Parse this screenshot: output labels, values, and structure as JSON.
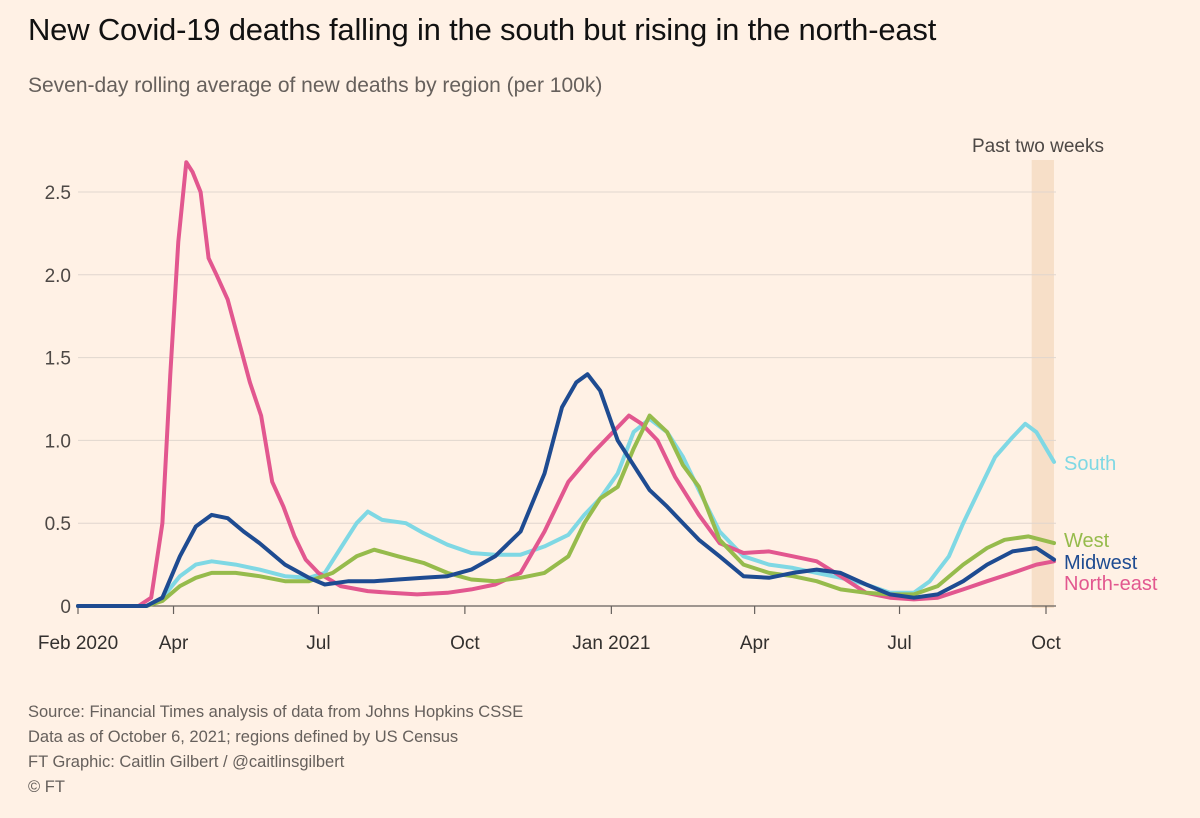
{
  "header": {
    "title": "New Covid-19 deaths falling in the south but rising in the north-east",
    "subtitle": "Seven-day rolling average of new deaths by region (per 100k)"
  },
  "annotation": {
    "past_two_weeks": "Past two weeks"
  },
  "footer": {
    "source": "Source: Financial Times analysis of data from Johns Hopkins CSSE",
    "note": "Data as of October 6, 2021; regions defined by US Census",
    "credit": "FT Graphic: Caitlin Gilbert / @caitlinsgilbert",
    "copyright": "© FT"
  },
  "colors": {
    "background": "#fff1e5",
    "south": "#7fd8e4",
    "west": "#96bb4c",
    "midwest": "#1e4b91",
    "northeast": "#e2578f",
    "highlight": "#f7dfc8",
    "grid": "#e0d6ce"
  },
  "chart_data": {
    "type": "line",
    "title": "New Covid-19 deaths falling in the south but rising in the north-east",
    "subtitle": "Seven-day rolling average of new deaths by region (per 100k)",
    "ylim": [
      0,
      2.7
    ],
    "xlim": [
      "2020-02-01",
      "2021-10-06"
    ],
    "y_ticks": [
      {
        "value": 0,
        "label": "0"
      },
      {
        "value": 0.5,
        "label": "0.5"
      },
      {
        "value": 1.0,
        "label": "1.0"
      },
      {
        "value": 1.5,
        "label": "1.5"
      },
      {
        "value": 2.0,
        "label": "2.0"
      },
      {
        "value": 2.5,
        "label": "2.5"
      }
    ],
    "x_ticks": [
      {
        "date": "2020-02-01",
        "label": "Feb 2020"
      },
      {
        "date": "2020-04-01",
        "label": "Apr"
      },
      {
        "date": "2020-07-01",
        "label": "Jul"
      },
      {
        "date": "2020-10-01",
        "label": "Oct"
      },
      {
        "date": "2021-01-01",
        "label": "Jan 2021"
      },
      {
        "date": "2021-04-01",
        "label": "Apr"
      },
      {
        "date": "2021-07-01",
        "label": "Jul"
      },
      {
        "date": "2021-10-01",
        "label": "Oct"
      }
    ],
    "highlight_range": [
      "2021-09-22",
      "2021-10-06"
    ],
    "grid": true,
    "legend": "direct labels at right end of lines",
    "series": [
      {
        "name": "North-east",
        "key": "northeast",
        "points": [
          [
            "2020-02-01",
            0
          ],
          [
            "2020-03-10",
            0
          ],
          [
            "2020-03-18",
            0.05
          ],
          [
            "2020-03-25",
            0.5
          ],
          [
            "2020-03-30",
            1.4
          ],
          [
            "2020-04-04",
            2.2
          ],
          [
            "2020-04-09",
            2.68
          ],
          [
            "2020-04-13",
            2.62
          ],
          [
            "2020-04-18",
            2.5
          ],
          [
            "2020-04-23",
            2.1
          ],
          [
            "2020-04-28",
            2.0
          ],
          [
            "2020-05-05",
            1.85
          ],
          [
            "2020-05-12",
            1.6
          ],
          [
            "2020-05-19",
            1.35
          ],
          [
            "2020-05-26",
            1.15
          ],
          [
            "2020-06-02",
            0.75
          ],
          [
            "2020-06-09",
            0.6
          ],
          [
            "2020-06-16",
            0.42
          ],
          [
            "2020-06-23",
            0.28
          ],
          [
            "2020-07-01",
            0.2
          ],
          [
            "2020-07-15",
            0.12
          ],
          [
            "2020-08-01",
            0.09
          ],
          [
            "2020-08-15",
            0.08
          ],
          [
            "2020-09-01",
            0.07
          ],
          [
            "2020-09-20",
            0.08
          ],
          [
            "2020-10-05",
            0.1
          ],
          [
            "2020-10-20",
            0.13
          ],
          [
            "2020-11-05",
            0.2
          ],
          [
            "2020-11-20",
            0.45
          ],
          [
            "2020-12-05",
            0.75
          ],
          [
            "2020-12-20",
            0.92
          ],
          [
            "2021-01-05",
            1.08
          ],
          [
            "2021-01-12",
            1.15
          ],
          [
            "2021-01-20",
            1.1
          ],
          [
            "2021-01-30",
            1.0
          ],
          [
            "2021-02-10",
            0.78
          ],
          [
            "2021-02-25",
            0.55
          ],
          [
            "2021-03-10",
            0.38
          ],
          [
            "2021-03-25",
            0.32
          ],
          [
            "2021-04-10",
            0.33
          ],
          [
            "2021-04-25",
            0.3
          ],
          [
            "2021-05-10",
            0.27
          ],
          [
            "2021-05-25",
            0.18
          ],
          [
            "2021-06-10",
            0.08
          ],
          [
            "2021-06-25",
            0.05
          ],
          [
            "2021-07-10",
            0.04
          ],
          [
            "2021-07-25",
            0.05
          ],
          [
            "2021-08-10",
            0.1
          ],
          [
            "2021-08-25",
            0.15
          ],
          [
            "2021-09-10",
            0.2
          ],
          [
            "2021-09-25",
            0.25
          ],
          [
            "2021-10-06",
            0.27
          ]
        ]
      },
      {
        "name": "South",
        "key": "south",
        "points": [
          [
            "2020-02-01",
            0
          ],
          [
            "2020-03-15",
            0
          ],
          [
            "2020-03-25",
            0.05
          ],
          [
            "2020-04-05",
            0.18
          ],
          [
            "2020-04-15",
            0.25
          ],
          [
            "2020-04-25",
            0.27
          ],
          [
            "2020-05-10",
            0.25
          ],
          [
            "2020-05-25",
            0.22
          ],
          [
            "2020-06-10",
            0.18
          ],
          [
            "2020-06-25",
            0.17
          ],
          [
            "2020-07-05",
            0.2
          ],
          [
            "2020-07-15",
            0.35
          ],
          [
            "2020-07-25",
            0.5
          ],
          [
            "2020-08-01",
            0.57
          ],
          [
            "2020-08-10",
            0.52
          ],
          [
            "2020-08-25",
            0.5
          ],
          [
            "2020-09-05",
            0.44
          ],
          [
            "2020-09-20",
            0.37
          ],
          [
            "2020-10-05",
            0.32
          ],
          [
            "2020-10-20",
            0.31
          ],
          [
            "2020-11-05",
            0.31
          ],
          [
            "2020-11-20",
            0.36
          ],
          [
            "2020-12-05",
            0.43
          ],
          [
            "2020-12-15",
            0.55
          ],
          [
            "2020-12-25",
            0.65
          ],
          [
            "2021-01-05",
            0.8
          ],
          [
            "2021-01-15",
            1.05
          ],
          [
            "2021-01-25",
            1.13
          ],
          [
            "2021-02-05",
            1.05
          ],
          [
            "2021-02-15",
            0.9
          ],
          [
            "2021-02-25",
            0.7
          ],
          [
            "2021-03-10",
            0.45
          ],
          [
            "2021-03-25",
            0.3
          ],
          [
            "2021-04-10",
            0.25
          ],
          [
            "2021-04-25",
            0.23
          ],
          [
            "2021-05-10",
            0.2
          ],
          [
            "2021-05-25",
            0.17
          ],
          [
            "2021-06-10",
            0.13
          ],
          [
            "2021-06-25",
            0.08
          ],
          [
            "2021-07-10",
            0.08
          ],
          [
            "2021-07-20",
            0.15
          ],
          [
            "2021-08-01",
            0.3
          ],
          [
            "2021-08-10",
            0.5
          ],
          [
            "2021-08-20",
            0.7
          ],
          [
            "2021-08-30",
            0.9
          ],
          [
            "2021-09-10",
            1.02
          ],
          [
            "2021-09-18",
            1.1
          ],
          [
            "2021-09-25",
            1.05
          ],
          [
            "2021-10-06",
            0.87
          ]
        ]
      },
      {
        "name": "West",
        "key": "west",
        "points": [
          [
            "2020-02-01",
            0
          ],
          [
            "2020-03-15",
            0
          ],
          [
            "2020-03-25",
            0.03
          ],
          [
            "2020-04-05",
            0.12
          ],
          [
            "2020-04-15",
            0.17
          ],
          [
            "2020-04-25",
            0.2
          ],
          [
            "2020-05-10",
            0.2
          ],
          [
            "2020-05-25",
            0.18
          ],
          [
            "2020-06-10",
            0.15
          ],
          [
            "2020-06-25",
            0.15
          ],
          [
            "2020-07-10",
            0.2
          ],
          [
            "2020-07-25",
            0.3
          ],
          [
            "2020-08-05",
            0.34
          ],
          [
            "2020-08-20",
            0.3
          ],
          [
            "2020-09-05",
            0.26
          ],
          [
            "2020-09-20",
            0.2
          ],
          [
            "2020-10-05",
            0.16
          ],
          [
            "2020-10-20",
            0.15
          ],
          [
            "2020-11-05",
            0.17
          ],
          [
            "2020-11-20",
            0.2
          ],
          [
            "2020-12-05",
            0.3
          ],
          [
            "2020-12-15",
            0.5
          ],
          [
            "2020-12-25",
            0.65
          ],
          [
            "2021-01-05",
            0.72
          ],
          [
            "2021-01-15",
            0.95
          ],
          [
            "2021-01-25",
            1.15
          ],
          [
            "2021-02-05",
            1.05
          ],
          [
            "2021-02-15",
            0.85
          ],
          [
            "2021-02-25",
            0.72
          ],
          [
            "2021-03-10",
            0.4
          ],
          [
            "2021-03-25",
            0.25
          ],
          [
            "2021-04-10",
            0.2
          ],
          [
            "2021-04-25",
            0.18
          ],
          [
            "2021-05-10",
            0.15
          ],
          [
            "2021-05-25",
            0.1
          ],
          [
            "2021-06-10",
            0.08
          ],
          [
            "2021-06-25",
            0.07
          ],
          [
            "2021-07-10",
            0.07
          ],
          [
            "2021-07-25",
            0.12
          ],
          [
            "2021-08-10",
            0.25
          ],
          [
            "2021-08-25",
            0.35
          ],
          [
            "2021-09-05",
            0.4
          ],
          [
            "2021-09-20",
            0.42
          ],
          [
            "2021-10-06",
            0.38
          ]
        ]
      },
      {
        "name": "Midwest",
        "key": "midwest",
        "points": [
          [
            "2020-02-01",
            0
          ],
          [
            "2020-03-15",
            0
          ],
          [
            "2020-03-25",
            0.05
          ],
          [
            "2020-04-05",
            0.3
          ],
          [
            "2020-04-15",
            0.48
          ],
          [
            "2020-04-25",
            0.55
          ],
          [
            "2020-05-05",
            0.53
          ],
          [
            "2020-05-15",
            0.45
          ],
          [
            "2020-05-25",
            0.38
          ],
          [
            "2020-06-10",
            0.25
          ],
          [
            "2020-06-25",
            0.17
          ],
          [
            "2020-07-05",
            0.13
          ],
          [
            "2020-07-20",
            0.15
          ],
          [
            "2020-08-05",
            0.15
          ],
          [
            "2020-08-20",
            0.16
          ],
          [
            "2020-09-05",
            0.17
          ],
          [
            "2020-09-20",
            0.18
          ],
          [
            "2020-10-05",
            0.22
          ],
          [
            "2020-10-20",
            0.3
          ],
          [
            "2020-11-05",
            0.45
          ],
          [
            "2020-11-20",
            0.8
          ],
          [
            "2020-12-01",
            1.2
          ],
          [
            "2020-12-10",
            1.35
          ],
          [
            "2020-12-17",
            1.4
          ],
          [
            "2020-12-25",
            1.3
          ],
          [
            "2021-01-05",
            1.0
          ],
          [
            "2021-01-15",
            0.85
          ],
          [
            "2021-01-25",
            0.7
          ],
          [
            "2021-02-05",
            0.6
          ],
          [
            "2021-02-15",
            0.5
          ],
          [
            "2021-02-25",
            0.4
          ],
          [
            "2021-03-10",
            0.3
          ],
          [
            "2021-03-25",
            0.18
          ],
          [
            "2021-04-10",
            0.17
          ],
          [
            "2021-04-25",
            0.2
          ],
          [
            "2021-05-10",
            0.22
          ],
          [
            "2021-05-25",
            0.2
          ],
          [
            "2021-06-10",
            0.13
          ],
          [
            "2021-06-25",
            0.07
          ],
          [
            "2021-07-10",
            0.05
          ],
          [
            "2021-07-25",
            0.07
          ],
          [
            "2021-08-10",
            0.15
          ],
          [
            "2021-08-25",
            0.25
          ],
          [
            "2021-09-10",
            0.33
          ],
          [
            "2021-09-25",
            0.35
          ],
          [
            "2021-10-06",
            0.28
          ]
        ]
      }
    ],
    "labels": [
      {
        "key": "south",
        "text": "South"
      },
      {
        "key": "west",
        "text": "West"
      },
      {
        "key": "midwest",
        "text": "Midwest"
      },
      {
        "key": "northeast",
        "text": "North-east"
      }
    ]
  }
}
